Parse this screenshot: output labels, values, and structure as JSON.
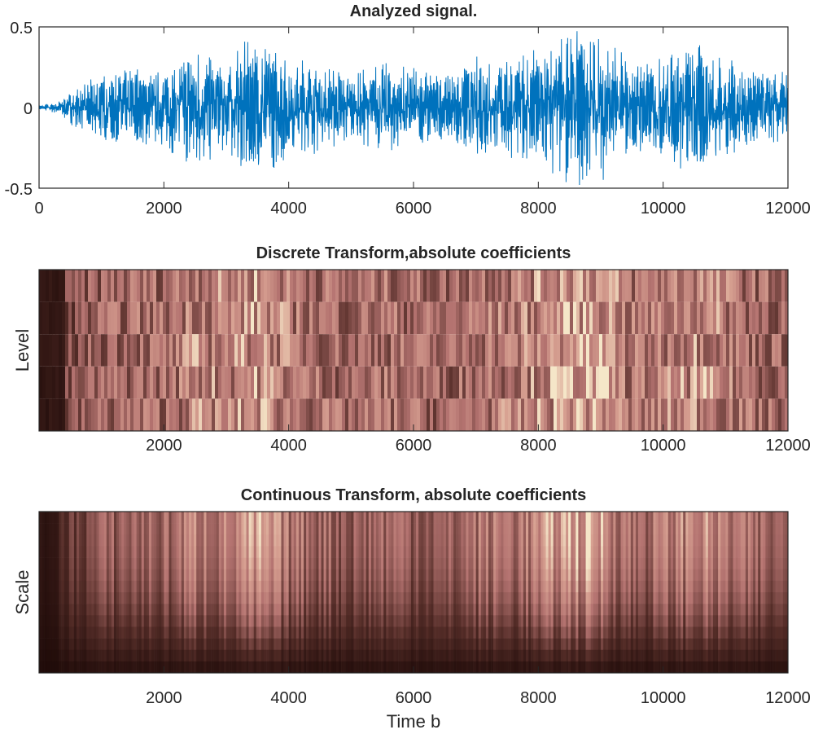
{
  "chart_data": [
    {
      "type": "line",
      "title": "Analyzed signal.",
      "xlim": [
        0,
        12000
      ],
      "ylim": [
        -0.5,
        0.5
      ],
      "xticks": [
        "0",
        "2000",
        "4000",
        "6000",
        "8000",
        "10000",
        "12000"
      ],
      "yticks": [
        "0.5",
        "0",
        "-0.5"
      ],
      "grid": false,
      "color": "#0072bd",
      "envelope": {
        "x": [
          0,
          300,
          500,
          1000,
          1500,
          2000,
          2500,
          3000,
          3500,
          4000,
          4500,
          5000,
          5500,
          6000,
          6500,
          7000,
          7500,
          8000,
          8500,
          9000,
          9500,
          10000,
          10500,
          11000,
          11500,
          12000
        ],
        "amplitude": [
          0.01,
          0.03,
          0.08,
          0.17,
          0.2,
          0.2,
          0.3,
          0.27,
          0.35,
          0.25,
          0.22,
          0.17,
          0.22,
          0.2,
          0.16,
          0.25,
          0.25,
          0.3,
          0.4,
          0.36,
          0.22,
          0.26,
          0.33,
          0.25,
          0.2,
          0.17
        ]
      }
    },
    {
      "type": "heatmap",
      "title": "Discrete Transform,absolute coefficients",
      "ylabel": "Level",
      "xlim": [
        0,
        12000
      ],
      "levels": 5,
      "xticks": [
        "2000",
        "4000",
        "6000",
        "8000",
        "10000",
        "12000"
      ],
      "colormap": "pink"
    },
    {
      "type": "heatmap",
      "title": "Continuous Transform, absolute coefficients",
      "ylabel": "Scale",
      "xlabel": "Time b",
      "xlim": [
        0,
        12000
      ],
      "xticks": [
        "2000",
        "4000",
        "6000",
        "8000",
        "10000",
        "12000"
      ],
      "colormap": "pink"
    }
  ]
}
